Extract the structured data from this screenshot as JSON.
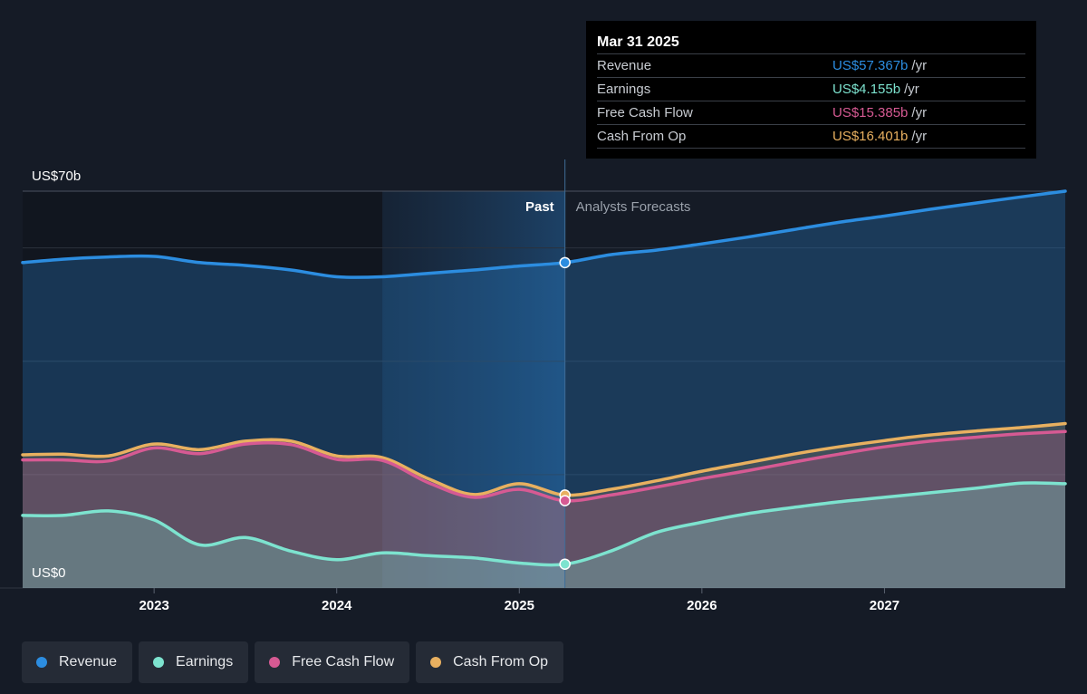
{
  "colors": {
    "revenue": "#2c8de0",
    "earnings": "#7de3cf",
    "fcf": "#d65a93",
    "cfo": "#e8b060",
    "background": "#151b26"
  },
  "tooltip": {
    "date": "Mar 31 2025",
    "rows": [
      {
        "label": "Revenue",
        "value": "US$57.367b",
        "unit": "/yr",
        "color": "#2c8de0"
      },
      {
        "label": "Earnings",
        "value": "US$4.155b",
        "unit": "/yr",
        "color": "#7de3cf"
      },
      {
        "label": "Free Cash Flow",
        "value": "US$15.385b",
        "unit": "/yr",
        "color": "#d65a93"
      },
      {
        "label": "Cash From Op",
        "value": "US$16.401b",
        "unit": "/yr",
        "color": "#e8b060"
      }
    ]
  },
  "legend": [
    {
      "label": "Revenue",
      "color": "#2c8de0"
    },
    {
      "label": "Earnings",
      "color": "#7de3cf"
    },
    {
      "label": "Free Cash Flow",
      "color": "#d65a93"
    },
    {
      "label": "Cash From Op",
      "color": "#e8b060"
    }
  ],
  "chart_data": {
    "type": "line",
    "y_top_label": "US$70b",
    "y_bottom_label": "US$0",
    "ylim": [
      0,
      70
    ],
    "xlim": [
      2022.28,
      2027.99
    ],
    "x_ticks": [
      {
        "value": 2023,
        "label": "2023"
      },
      {
        "value": 2024,
        "label": "2024"
      },
      {
        "value": 2025,
        "label": "2025"
      },
      {
        "value": 2026,
        "label": "2026"
      },
      {
        "value": 2027,
        "label": "2027"
      }
    ],
    "grid_values": [
      70,
      60,
      40,
      20,
      0
    ],
    "past_label": "Past",
    "forecast_label": "Analysts Forecasts",
    "divider_x": 2025.25,
    "highlight_start_x": 2024.25,
    "series": [
      {
        "name": "Revenue",
        "key": "revenue",
        "points": [
          [
            2022.28,
            57.4
          ],
          [
            2022.5,
            58.0
          ],
          [
            2022.75,
            58.4
          ],
          [
            2023.0,
            58.5
          ],
          [
            2023.25,
            57.4
          ],
          [
            2023.5,
            56.9
          ],
          [
            2023.75,
            56.1
          ],
          [
            2024.0,
            54.9
          ],
          [
            2024.25,
            54.9
          ],
          [
            2024.5,
            55.5
          ],
          [
            2024.75,
            56.1
          ],
          [
            2025.0,
            56.8
          ],
          [
            2025.25,
            57.4
          ],
          [
            2025.5,
            58.8
          ],
          [
            2025.75,
            59.6
          ],
          [
            2026.0,
            60.7
          ],
          [
            2026.25,
            61.9
          ],
          [
            2026.5,
            63.2
          ],
          [
            2026.75,
            64.5
          ],
          [
            2027.0,
            65.6
          ],
          [
            2027.25,
            66.8
          ],
          [
            2027.5,
            67.9
          ],
          [
            2027.75,
            69.0
          ],
          [
            2027.99,
            70.0
          ]
        ]
      },
      {
        "name": "Earnings",
        "key": "earnings",
        "points": [
          [
            2022.28,
            12.8
          ],
          [
            2022.5,
            12.8
          ],
          [
            2022.75,
            13.6
          ],
          [
            2023.0,
            12.0
          ],
          [
            2023.25,
            7.6
          ],
          [
            2023.5,
            8.9
          ],
          [
            2023.75,
            6.5
          ],
          [
            2024.0,
            5.0
          ],
          [
            2024.25,
            6.2
          ],
          [
            2024.5,
            5.7
          ],
          [
            2024.75,
            5.3
          ],
          [
            2025.0,
            4.4
          ],
          [
            2025.25,
            4.2
          ],
          [
            2025.5,
            6.5
          ],
          [
            2025.75,
            9.8
          ],
          [
            2026.0,
            11.6
          ],
          [
            2026.25,
            13.1
          ],
          [
            2026.5,
            14.2
          ],
          [
            2026.75,
            15.2
          ],
          [
            2027.0,
            16.0
          ],
          [
            2027.25,
            16.8
          ],
          [
            2027.5,
            17.6
          ],
          [
            2027.75,
            18.5
          ],
          [
            2027.99,
            18.4
          ]
        ]
      },
      {
        "name": "Free Cash Flow",
        "key": "fcf",
        "points": [
          [
            2022.28,
            22.6
          ],
          [
            2022.5,
            22.6
          ],
          [
            2022.75,
            22.4
          ],
          [
            2023.0,
            24.7
          ],
          [
            2023.25,
            23.7
          ],
          [
            2023.5,
            25.4
          ],
          [
            2023.75,
            25.3
          ],
          [
            2024.0,
            22.7
          ],
          [
            2024.25,
            22.5
          ],
          [
            2024.5,
            18.6
          ],
          [
            2024.75,
            16.0
          ],
          [
            2025.0,
            17.4
          ],
          [
            2025.25,
            15.4
          ],
          [
            2025.5,
            16.4
          ],
          [
            2025.75,
            17.8
          ],
          [
            2026.0,
            19.3
          ],
          [
            2026.25,
            20.7
          ],
          [
            2026.5,
            22.2
          ],
          [
            2026.75,
            23.6
          ],
          [
            2027.0,
            24.9
          ],
          [
            2027.25,
            25.9
          ],
          [
            2027.5,
            26.6
          ],
          [
            2027.75,
            27.2
          ],
          [
            2027.99,
            27.6
          ]
        ]
      },
      {
        "name": "Cash From Op",
        "key": "cfo",
        "points": [
          [
            2022.28,
            23.5
          ],
          [
            2022.5,
            23.6
          ],
          [
            2022.75,
            23.3
          ],
          [
            2023.0,
            25.4
          ],
          [
            2023.25,
            24.4
          ],
          [
            2023.5,
            25.9
          ],
          [
            2023.75,
            25.9
          ],
          [
            2024.0,
            23.3
          ],
          [
            2024.25,
            23.0
          ],
          [
            2024.5,
            19.3
          ],
          [
            2024.75,
            16.5
          ],
          [
            2025.0,
            18.4
          ],
          [
            2025.25,
            16.4
          ],
          [
            2025.5,
            17.4
          ],
          [
            2025.75,
            18.9
          ],
          [
            2026.0,
            20.6
          ],
          [
            2026.25,
            22.1
          ],
          [
            2026.5,
            23.6
          ],
          [
            2026.75,
            24.9
          ],
          [
            2027.0,
            26.0
          ],
          [
            2027.25,
            27.0
          ],
          [
            2027.5,
            27.7
          ],
          [
            2027.75,
            28.3
          ],
          [
            2027.99,
            29.0
          ]
        ]
      }
    ]
  }
}
